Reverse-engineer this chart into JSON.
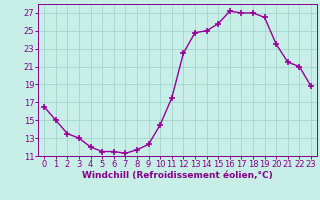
{
  "x": [
    0,
    1,
    2,
    3,
    4,
    5,
    6,
    7,
    8,
    9,
    10,
    11,
    12,
    13,
    14,
    15,
    16,
    17,
    18,
    19,
    20,
    21,
    22,
    23
  ],
  "y": [
    16.5,
    15.0,
    13.5,
    13.0,
    12.0,
    11.5,
    11.5,
    11.3,
    11.7,
    12.3,
    14.5,
    17.5,
    22.5,
    24.8,
    25.0,
    25.8,
    27.2,
    27.0,
    27.0,
    26.5,
    23.5,
    21.5,
    21.0,
    18.8
  ],
  "line_color": "#990099",
  "marker": "+",
  "marker_size": 4,
  "marker_lw": 1.2,
  "bg_color": "#c8eee8",
  "grid_color": "#a8d8d0",
  "xlabel": "Windchill (Refroidissement éolien,°C)",
  "ylim": [
    11,
    28
  ],
  "xlim": [
    -0.5,
    23.5
  ],
  "yticks": [
    11,
    13,
    15,
    17,
    19,
    21,
    23,
    25,
    27
  ],
  "xticks": [
    0,
    1,
    2,
    3,
    4,
    5,
    6,
    7,
    8,
    9,
    10,
    11,
    12,
    13,
    14,
    15,
    16,
    17,
    18,
    19,
    20,
    21,
    22,
    23
  ],
  "tick_color": "#880088",
  "label_color": "#880088",
  "xlabel_fontsize": 6.5,
  "tick_fontsize": 6.0,
  "line_width": 1.0
}
